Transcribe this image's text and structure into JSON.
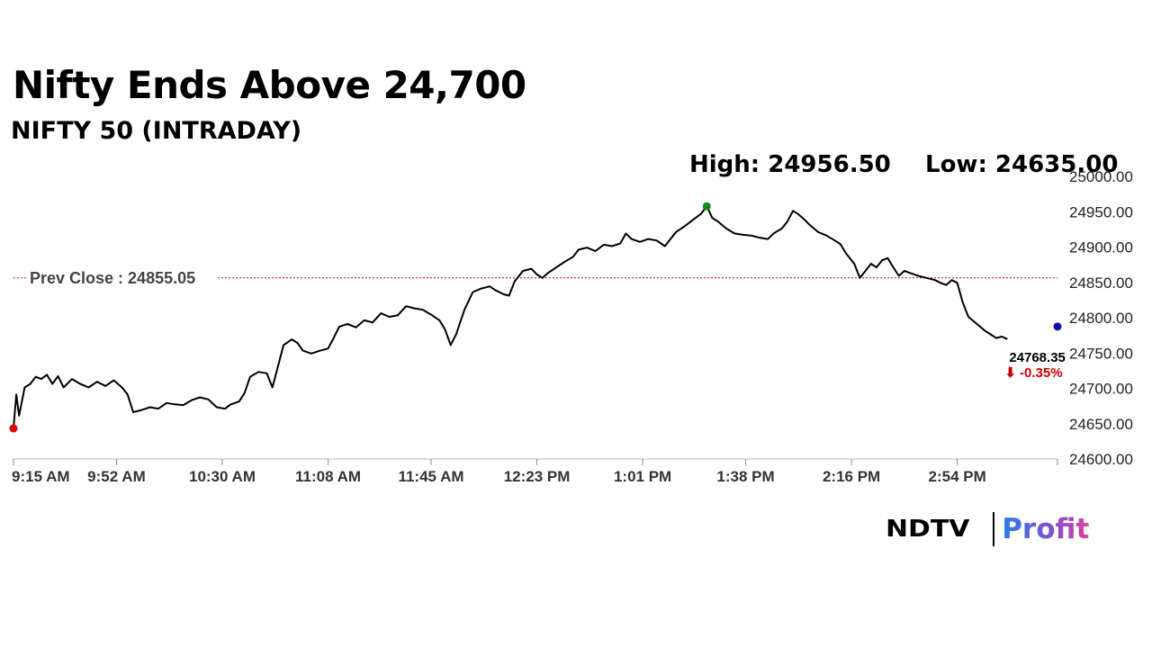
{
  "header": {
    "title": "Nifty Ends Above 24,700",
    "subtitle": "NIFTY 50 (INTRADAY)",
    "high_label": "High: 24956.50",
    "low_label": "Low: 24635.00"
  },
  "logo": {
    "brand": "NDTV",
    "product": "Profit"
  },
  "chart_data": {
    "type": "line",
    "title": "Nifty Ends Above 24,700",
    "subtitle": "NIFTY 50 (INTRADAY)",
    "x_labels": [
      "9:15 AM",
      "9:52 AM",
      "10:30 AM",
      "11:08 AM",
      "11:45 AM",
      "12:23 PM",
      "1:01 PM",
      "1:38 PM",
      "2:16 PM",
      "2:54 PM"
    ],
    "y_ticks": [
      "24600.00",
      "24650.00",
      "24700.00",
      "24750.00",
      "24800.00",
      "24850.00",
      "24900.00",
      "24950.00",
      "25000.00"
    ],
    "ylim": [
      24600,
      25000
    ],
    "x_range_minutes": [
      0,
      375
    ],
    "x_label_minutes": [
      0,
      37,
      75,
      113,
      150,
      188,
      226,
      263,
      301,
      339
    ],
    "series": [
      {
        "color": "#000000",
        "points": [
          [
            0,
            24642
          ],
          [
            1,
            24690
          ],
          [
            2,
            24660
          ],
          [
            4,
            24700
          ],
          [
            6,
            24705
          ],
          [
            8,
            24715
          ],
          [
            10,
            24712
          ],
          [
            12,
            24718
          ],
          [
            14,
            24705
          ],
          [
            16,
            24716
          ],
          [
            18,
            24700
          ],
          [
            21,
            24712
          ],
          [
            24,
            24705
          ],
          [
            27,
            24700
          ],
          [
            30,
            24708
          ],
          [
            33,
            24702
          ],
          [
            36,
            24710
          ],
          [
            39,
            24700
          ],
          [
            41,
            24690
          ],
          [
            43,
            24665
          ],
          [
            46,
            24668
          ],
          [
            49,
            24672
          ],
          [
            52,
            24670
          ],
          [
            55,
            24678
          ],
          [
            58,
            24676
          ],
          [
            61,
            24675
          ],
          [
            64,
            24682
          ],
          [
            67,
            24686
          ],
          [
            70,
            24683
          ],
          [
            73,
            24672
          ],
          [
            76,
            24670
          ],
          [
            78,
            24676
          ],
          [
            81,
            24680
          ],
          [
            83,
            24692
          ],
          [
            85,
            24715
          ],
          [
            88,
            24722
          ],
          [
            91,
            24720
          ],
          [
            93,
            24700
          ],
          [
            95,
            24730
          ],
          [
            97,
            24760
          ],
          [
            100,
            24768
          ],
          [
            102,
            24763
          ],
          [
            104,
            24752
          ],
          [
            107,
            24748
          ],
          [
            110,
            24752
          ],
          [
            113,
            24755
          ],
          [
            115,
            24770
          ],
          [
            117,
            24786
          ],
          [
            120,
            24790
          ],
          [
            123,
            24785
          ],
          [
            126,
            24795
          ],
          [
            129,
            24792
          ],
          [
            132,
            24805
          ],
          [
            135,
            24800
          ],
          [
            138,
            24802
          ],
          [
            141,
            24815
          ],
          [
            144,
            24812
          ],
          [
            147,
            24810
          ],
          [
            150,
            24803
          ],
          [
            153,
            24795
          ],
          [
            155,
            24782
          ],
          [
            157,
            24760
          ],
          [
            159,
            24775
          ],
          [
            162,
            24810
          ],
          [
            165,
            24835
          ],
          [
            168,
            24840
          ],
          [
            171,
            24843
          ],
          [
            173,
            24838
          ],
          [
            176,
            24832
          ],
          [
            178,
            24830
          ],
          [
            180,
            24850
          ],
          [
            183,
            24865
          ],
          [
            186,
            24868
          ],
          [
            188,
            24860
          ],
          [
            190,
            24855
          ],
          [
            192,
            24862
          ],
          [
            195,
            24870
          ],
          [
            198,
            24878
          ],
          [
            201,
            24885
          ],
          [
            203,
            24895
          ],
          [
            206,
            24898
          ],
          [
            209,
            24893
          ],
          [
            212,
            24902
          ],
          [
            215,
            24900
          ],
          [
            218,
            24904
          ],
          [
            220,
            24918
          ],
          [
            222,
            24910
          ],
          [
            225,
            24906
          ],
          [
            228,
            24910
          ],
          [
            231,
            24908
          ],
          [
            234,
            24900
          ],
          [
            236,
            24910
          ],
          [
            238,
            24920
          ],
          [
            241,
            24928
          ],
          [
            243,
            24934
          ],
          [
            245,
            24940
          ],
          [
            247,
            24946
          ],
          [
            249,
            24956.5
          ],
          [
            251,
            24940
          ],
          [
            253,
            24935
          ],
          [
            256,
            24925
          ],
          [
            259,
            24918
          ],
          [
            262,
            24916
          ],
          [
            265,
            24915
          ],
          [
            268,
            24912
          ],
          [
            271,
            24910
          ],
          [
            273,
            24918
          ],
          [
            276,
            24925
          ],
          [
            278,
            24935
          ],
          [
            280,
            24950
          ],
          [
            282,
            24945
          ],
          [
            284,
            24938
          ],
          [
            286,
            24930
          ],
          [
            289,
            24920
          ],
          [
            292,
            24915
          ],
          [
            295,
            24908
          ],
          [
            297,
            24903
          ],
          [
            299,
            24890
          ],
          [
            302,
            24875
          ],
          [
            304,
            24855
          ],
          [
            306,
            24865
          ],
          [
            308,
            24875
          ],
          [
            310,
            24870
          ],
          [
            312,
            24880
          ],
          [
            314,
            24883
          ],
          [
            316,
            24870
          ],
          [
            318,
            24858
          ],
          [
            320,
            24865
          ],
          [
            322,
            24862
          ],
          [
            325,
            24858
          ],
          [
            328,
            24855
          ],
          [
            331,
            24852
          ],
          [
            333,
            24848
          ],
          [
            335,
            24845
          ],
          [
            337,
            24852
          ],
          [
            339,
            24848
          ],
          [
            341,
            24820
          ],
          [
            343,
            24800
          ],
          [
            346,
            24790
          ],
          [
            349,
            24780
          ],
          [
            351,
            24775
          ],
          [
            353,
            24770
          ],
          [
            355,
            24772
          ],
          [
            357,
            24768.35
          ]
        ]
      }
    ],
    "prev_close": {
      "label": "Prev Close : 24855.05",
      "value": 24855.05,
      "color": "#cc0000"
    },
    "high": {
      "value": 24956.5,
      "minute": 249,
      "color": "#1a8a1a"
    },
    "open_marker": {
      "value": 24642,
      "minute": 0,
      "color": "#e00000"
    },
    "last": {
      "value_label": "24768.35",
      "change_label": "⬇ -0.35%",
      "minute": 357,
      "value": 24768.35,
      "marker_minute": 375,
      "marker_color": "#1010a0",
      "change_color": "#cc0000"
    }
  }
}
